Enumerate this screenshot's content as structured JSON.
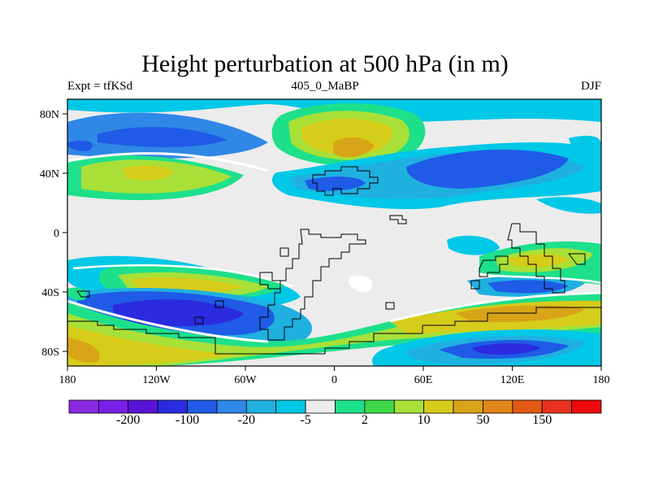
{
  "title": "Height perturbation at 500 hPa (in m)",
  "left_label": "Expt = tfKSd",
  "center_label": "405_0_MaBP",
  "right_label": "DJF",
  "lon_ticks": [
    "180",
    "120W",
    "60W",
    "0",
    "60E",
    "120E",
    "180"
  ],
  "lat_ticks": [
    "80N",
    "40N",
    "0",
    "40S",
    "80S"
  ],
  "colorbar": {
    "colors": [
      "#8a2be2",
      "#7a1fe6",
      "#5a14d8",
      "#2b2be0",
      "#1f5be6",
      "#2f87e6",
      "#1fb0e0",
      "#00c8e6",
      "#ececec",
      "#1ee08a",
      "#3ed84a",
      "#a8e038",
      "#d6cc1a",
      "#d8a418",
      "#e0861a",
      "#e05a14",
      "#e8321e",
      "#ee0a0a"
    ],
    "labels": [
      "-200",
      "-100",
      "-20",
      "-5",
      "2",
      "10",
      "50",
      "150"
    ]
  }
}
